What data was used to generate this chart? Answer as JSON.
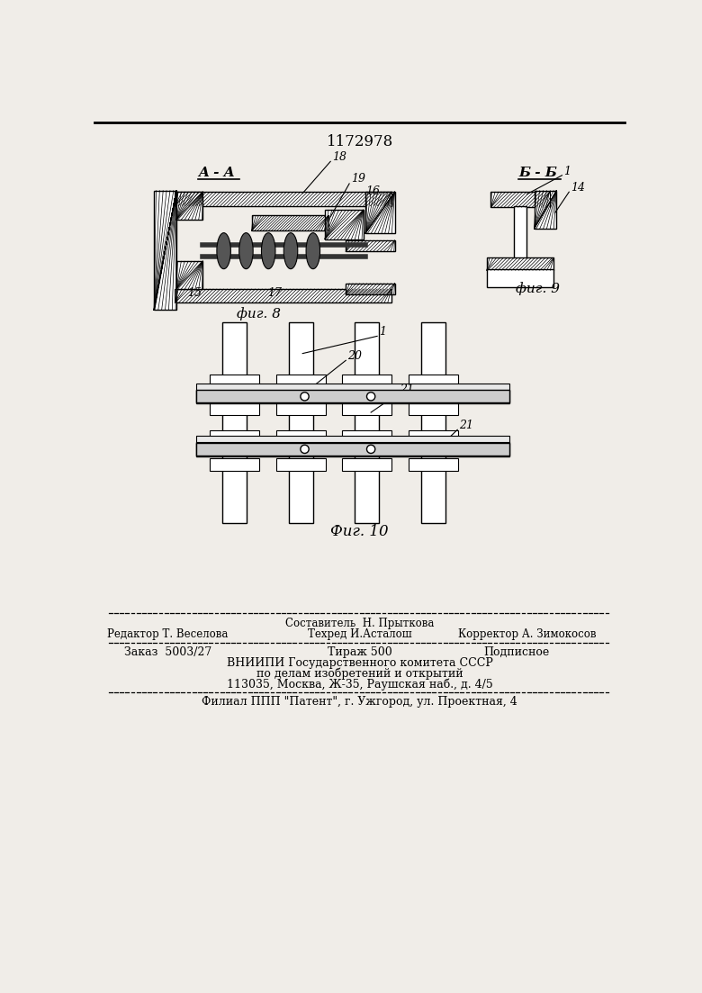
{
  "patent_number": "1172978",
  "bg_color": "#f0ede8",
  "fig8_label": "фиг. 8",
  "fig9_label": "фиг. 9",
  "fig10_label": "Фиг. 10",
  "section_aa": "A - A",
  "section_bb": "Б - Б",
  "footer_sostavitel": "Составитель  Н. Прыткова",
  "footer_line1_left": "Редактор Т. Веселова",
  "footer_line1_center": "Техред И.Асталош",
  "footer_line1_right": "Корректор А. Зимокосов",
  "footer_zakaz": "Заказ  5003/27",
  "footer_tirazh": "Тираж 500",
  "footer_podpisnoe": "Подписное",
  "footer_vnipi1": "ВНИИПИ Государственного комитета СССР",
  "footer_vnipi2": "по делам изобретений и открытий",
  "footer_vnipi3": "113035, Москва, Ж-35, Раушская наб., д. 4/5",
  "footer_filial": "Филиал ППП \"Патент\", г. Ужгород, ул. Проектная, 4"
}
